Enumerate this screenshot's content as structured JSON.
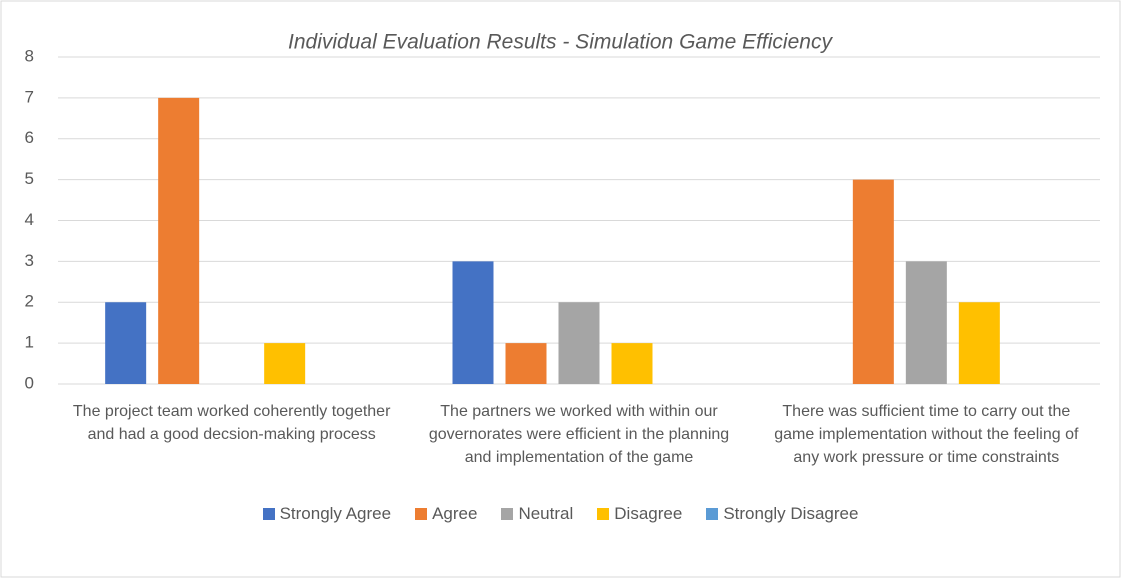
{
  "chart_data": {
    "type": "bar",
    "title": "Individual Evaluation Results - Simulation Game Efficiency",
    "categories": [
      "The project team worked coherently together and had a good decsion-making process",
      "The partners we worked with within our governorates were efficient in the planning and implementation of the game",
      "There was sufficient time to carry out the game implementation without the feeling of any work pressure or time constraints"
    ],
    "series": [
      {
        "name": "Strongly Agree",
        "color": "#4472c4",
        "values": [
          2,
          3,
          0
        ]
      },
      {
        "name": "Agree",
        "color": "#ed7d31",
        "values": [
          7,
          1,
          5
        ]
      },
      {
        "name": "Neutral",
        "color": "#a5a5a5",
        "values": [
          0,
          2,
          3
        ]
      },
      {
        "name": "Disagree",
        "color": "#ffc000",
        "values": [
          1,
          1,
          2
        ]
      },
      {
        "name": "Strongly Disagree",
        "color": "#5b9bd5",
        "values": [
          0,
          0,
          0
        ]
      }
    ],
    "ylim": [
      0,
      8
    ],
    "yticks": [
      0,
      1,
      2,
      3,
      4,
      5,
      6,
      7,
      8
    ],
    "grid": true,
    "legend": "bottom"
  }
}
